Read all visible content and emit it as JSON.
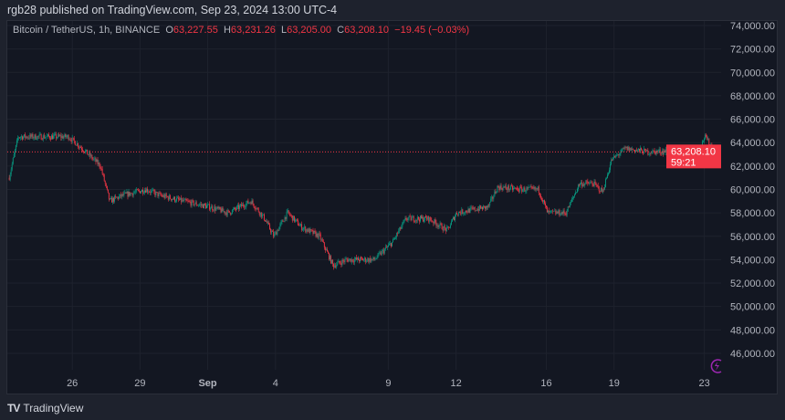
{
  "header": {
    "published": "rgb28 published on TradingView.com, Sep 23, 2024 13:00 UTC-4"
  },
  "legend": {
    "symbol": "Bitcoin / TetherUS, 1h, BINANCE",
    "o_label": "O",
    "o": "63,227.55",
    "h_label": "H",
    "h": "63,231.26",
    "l_label": "L",
    "l": "63,205.00",
    "c_label": "C",
    "c": "63,208.10",
    "change": "−19.45 (−0.03%)"
  },
  "price_tag": {
    "price": "63,208.10",
    "countdown": "59:21"
  },
  "footer": {
    "logo_mark": "TV",
    "brand": "TradingView"
  },
  "colors": {
    "up": "#089981",
    "down": "#f23645",
    "bg": "#131722",
    "accent": "#9c27b0"
  },
  "chart_data": {
    "type": "candlestick",
    "title": "Bitcoin / TetherUS, 1h, BINANCE",
    "ylim": [
      45000,
      75000
    ],
    "yticks": [
      "74,000.00",
      "72,000.00",
      "70,000.00",
      "68,000.00",
      "66,000.00",
      "64,000.00",
      "62,000.00",
      "60,000.00",
      "58,000.00",
      "56,000.00",
      "54,000.00",
      "52,000.00",
      "50,000.00",
      "48,000.00",
      "46,000.00"
    ],
    "xticks": [
      {
        "label": "26",
        "day": 3
      },
      {
        "label": "29",
        "day": 6
      },
      {
        "label": "Sep",
        "day": 9
      },
      {
        "label": "4",
        "day": 12
      },
      {
        "label": "9",
        "day": 17
      },
      {
        "label": "12",
        "day": 20
      },
      {
        "label": "16",
        "day": 24
      },
      {
        "label": "19",
        "day": 27
      },
      {
        "label": "23",
        "day": 31
      }
    ],
    "x_unit": "days since Aug 23 00:00",
    "last_price": 63208.1,
    "approx_close_path": [
      [
        0.2,
        61000
      ],
      [
        0.6,
        64500
      ],
      [
        1.42,
        64500
      ],
      [
        2.83,
        64500
      ],
      [
        3.44,
        63500
      ],
      [
        4.25,
        62000
      ],
      [
        4.65,
        59000
      ],
      [
        5.26,
        59500
      ],
      [
        6.27,
        60000
      ],
      [
        6.87,
        59500
      ],
      [
        7.89,
        59000
      ],
      [
        9.1,
        58500
      ],
      [
        9.91,
        58000
      ],
      [
        10.92,
        59000
      ],
      [
        11.52,
        57500
      ],
      [
        11.93,
        56000
      ],
      [
        12.54,
        58000
      ],
      [
        13.14,
        56800
      ],
      [
        13.95,
        56000
      ],
      [
        14.56,
        53500
      ],
      [
        15.16,
        54000
      ],
      [
        16.38,
        54000
      ],
      [
        17.19,
        55500
      ],
      [
        17.79,
        57500
      ],
      [
        18.8,
        57500
      ],
      [
        19.61,
        56500
      ],
      [
        20.02,
        58000
      ],
      [
        20.82,
        58300
      ],
      [
        21.43,
        58500
      ],
      [
        21.84,
        60200
      ],
      [
        22.85,
        60000
      ],
      [
        23.65,
        60000
      ],
      [
        24.06,
        58000
      ],
      [
        24.87,
        58000
      ],
      [
        25.47,
        60500
      ],
      [
        26.08,
        60500
      ],
      [
        26.49,
        59800
      ],
      [
        26.89,
        62500
      ],
      [
        27.5,
        63500
      ],
      [
        28.51,
        63200
      ],
      [
        29.72,
        63300
      ],
      [
        30.73,
        63000
      ],
      [
        31.01,
        64500
      ],
      [
        31.54,
        63208
      ]
    ]
  }
}
